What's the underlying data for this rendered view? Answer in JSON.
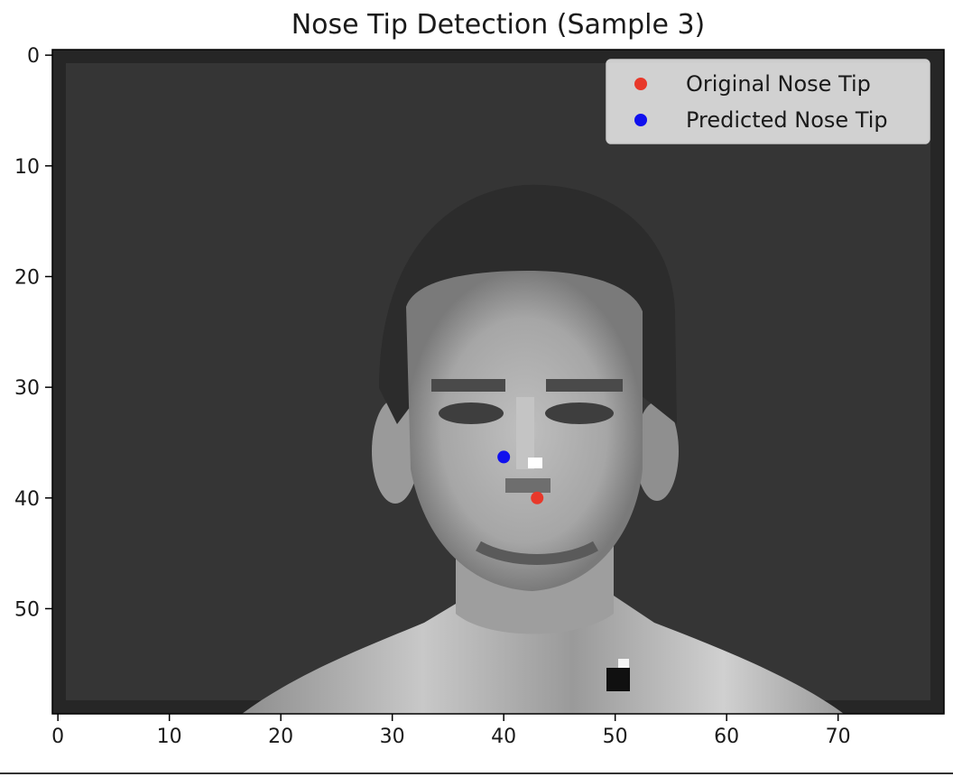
{
  "chart_data": {
    "type": "scatter",
    "title": "Nose Tip Detection (Sample 3)",
    "background": "grayscale-face-photo",
    "xlim": [
      -0.5,
      79.5
    ],
    "ylim": [
      59.5,
      -0.5
    ],
    "y_inverted": true,
    "x_ticks": [
      0,
      10,
      20,
      30,
      40,
      50,
      60,
      70
    ],
    "y_ticks": [
      0,
      10,
      20,
      30,
      40,
      50
    ],
    "legend_position": "upper-right",
    "series": [
      {
        "name": "Original Nose Tip",
        "color": "#e8382a",
        "points": [
          {
            "x": 43,
            "y": 40
          }
        ]
      },
      {
        "name": "Predicted Nose Tip",
        "color": "#1010ee",
        "points": [
          {
            "x": 40,
            "y": 36.3
          }
        ]
      }
    ]
  }
}
